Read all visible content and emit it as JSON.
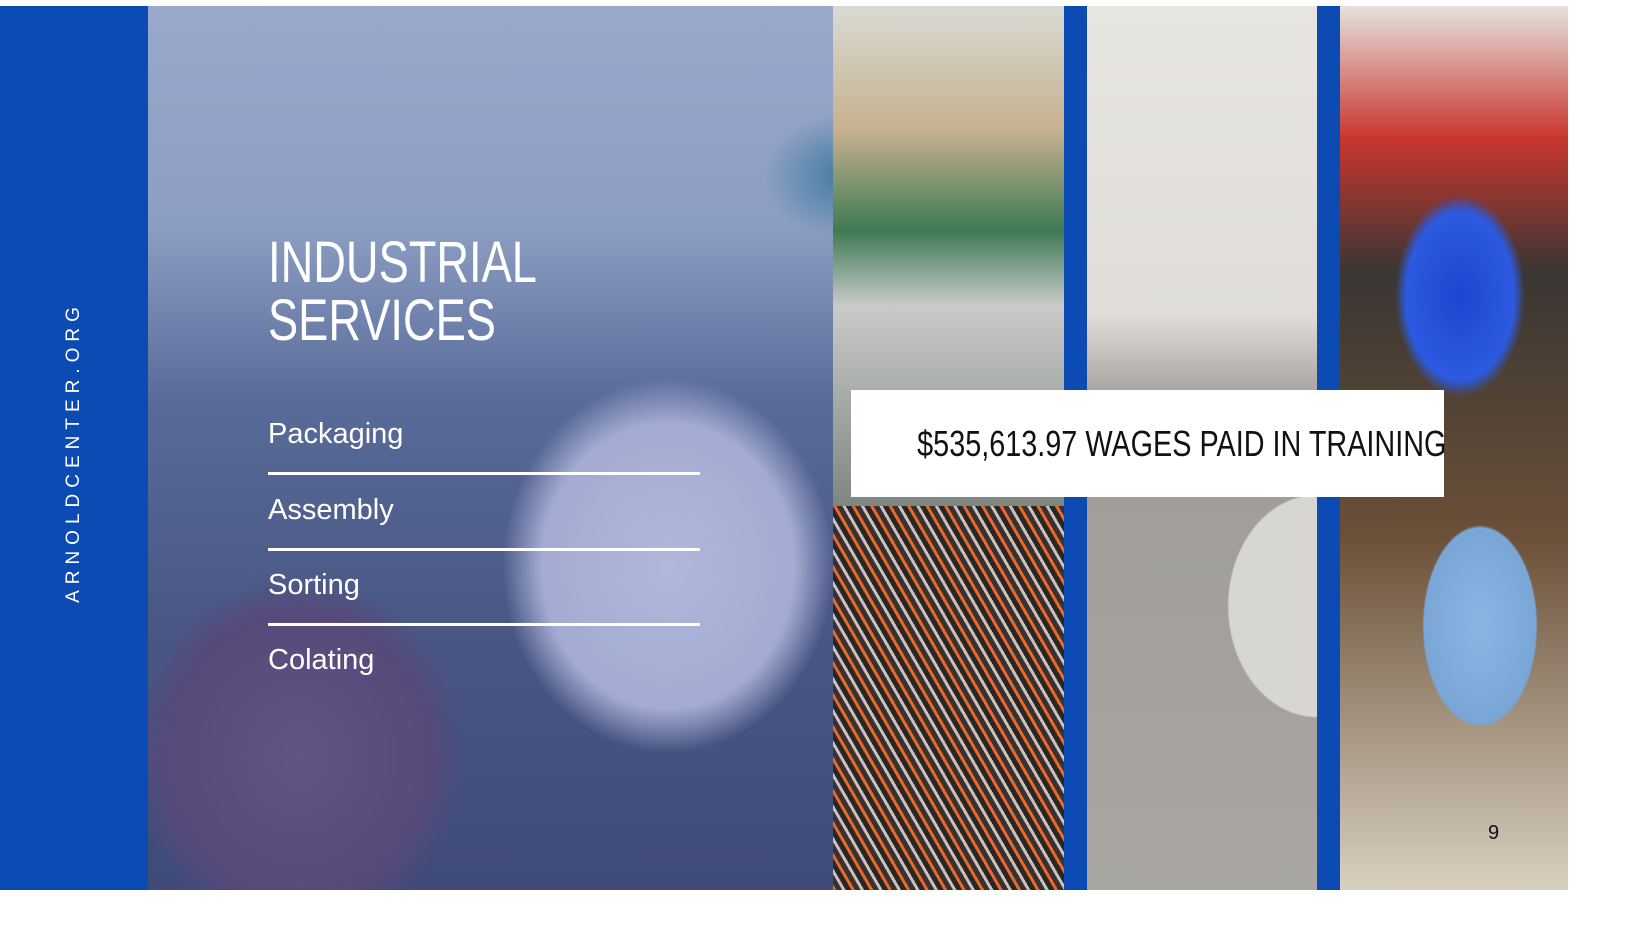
{
  "sidebar": {
    "website": "ARNOLDCENTER.ORG"
  },
  "title": "INDUSTRIAL SERVICES",
  "services": [
    "Packaging",
    "Assembly",
    "Sorting",
    "Colating"
  ],
  "stat": "$535,613.97 WAGES PAID IN TRAINING",
  "page_number": "9"
}
